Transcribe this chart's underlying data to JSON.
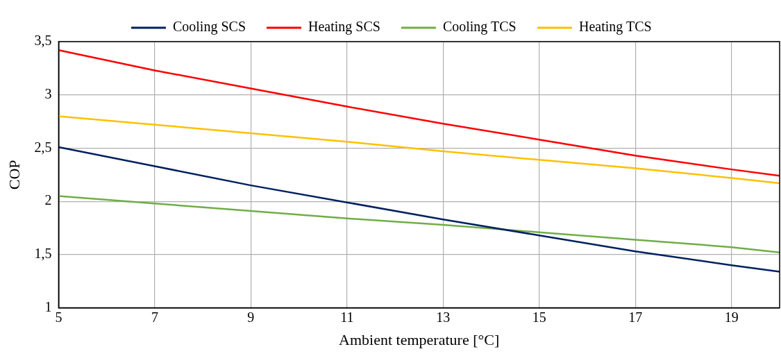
{
  "chart_data": {
    "type": "line",
    "xlabel": "Ambient temperature [°C]",
    "ylabel": "COP",
    "x": [
      5,
      7,
      9,
      11,
      13,
      15,
      17,
      19,
      20
    ],
    "series": [
      {
        "name": "Cooling SCS",
        "color": "#002060",
        "values": [
          2.51,
          2.33,
          2.15,
          1.99,
          1.83,
          1.68,
          1.53,
          1.4,
          1.34
        ]
      },
      {
        "name": "Heating SCS",
        "color": "#ff0000",
        "values": [
          3.42,
          3.23,
          3.06,
          2.89,
          2.73,
          2.58,
          2.43,
          2.3,
          2.24
        ]
      },
      {
        "name": "Cooling TCS",
        "color": "#70ad47",
        "values": [
          2.05,
          1.98,
          1.91,
          1.84,
          1.78,
          1.71,
          1.64,
          1.57,
          1.52
        ]
      },
      {
        "name": "Heating TCS",
        "color": "#ffc000",
        "values": [
          2.8,
          2.72,
          2.64,
          2.56,
          2.47,
          2.39,
          2.31,
          2.22,
          2.17
        ]
      }
    ],
    "xlim": [
      5,
      20
    ],
    "xticks": [
      5,
      7,
      9,
      11,
      13,
      15,
      17,
      19
    ],
    "ylim": [
      1,
      3.5
    ],
    "yticks": [
      1,
      {
        "value": 1.5,
        "label": "1,5"
      },
      2,
      {
        "value": 2.5,
        "label": "2,5"
      },
      3,
      {
        "value": 3.5,
        "label": "3,5"
      }
    ],
    "grid": true,
    "legend": "top",
    "marker": "none",
    "line_style": "solid"
  }
}
